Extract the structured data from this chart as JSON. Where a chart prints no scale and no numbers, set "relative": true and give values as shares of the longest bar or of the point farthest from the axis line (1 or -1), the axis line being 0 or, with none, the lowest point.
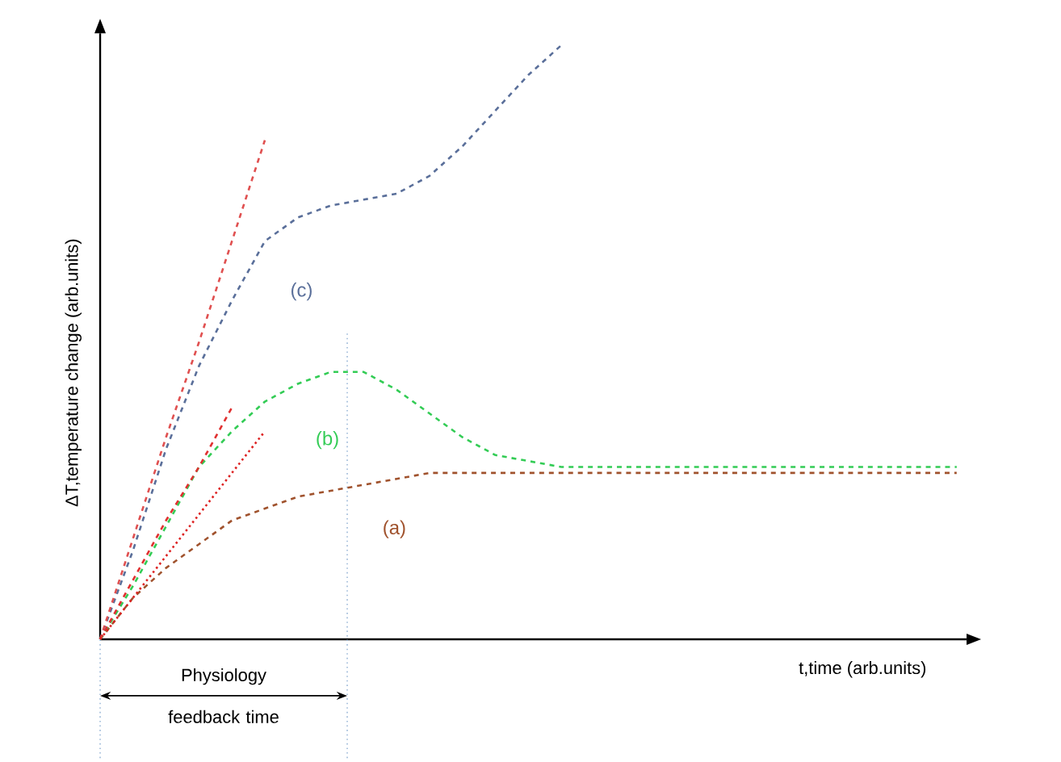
{
  "chart_data": {
    "type": "line",
    "relative": true,
    "xlabel": "t,time (arb.units)",
    "ylabel": "ΔT,temperature change (arb.units)",
    "categories": [
      null,
      null,
      null,
      null,
      null,
      null,
      null,
      null,
      null,
      null,
      null,
      null,
      null,
      null,
      null,
      null,
      null,
      null,
      null,
      null,
      null,
      null,
      null,
      null,
      null,
      null,
      null
    ],
    "marker": "none",
    "legend": false,
    "series": [
      {
        "name": "(a)",
        "color": "#a0522d",
        "line_style": "dashed",
        "values": [
          0,
          0.07,
          0.12,
          0.16,
          0.2,
          0.22,
          0.24,
          0.25,
          0.26,
          0.27,
          0.28,
          0.28,
          0.28,
          0.28,
          0.28,
          0.28,
          0.28,
          0.28,
          0.28,
          0.28,
          0.28,
          0.28,
          0.28,
          0.28,
          0.28,
          0.28,
          0.28
        ]
      },
      {
        "name": "(b)",
        "color": "#33cc55",
        "line_style": "dashed",
        "values": [
          0,
          0.09,
          0.19,
          0.29,
          0.35,
          0.4,
          0.43,
          0.45,
          0.45,
          0.42,
          0.38,
          0.34,
          0.31,
          0.3,
          0.29,
          0.29,
          0.29,
          0.29,
          0.29,
          0.29,
          0.29,
          0.29,
          0.29,
          0.29,
          0.29,
          0.29,
          0.29
        ]
      },
      {
        "name": "(c)",
        "color": "#5a6f9a",
        "line_style": "dashed",
        "values": [
          0,
          0.15,
          0.32,
          0.46,
          0.57,
          0.67,
          0.71,
          0.73,
          0.74,
          0.75,
          0.78,
          0.83,
          0.89,
          0.95,
          1.0,
          null,
          null,
          null,
          null,
          null,
          null,
          null,
          null,
          null,
          null,
          null,
          null
        ]
      },
      {
        "color": "#e05050",
        "line_style": "dashed",
        "values": [
          0,
          0.17,
          0.34,
          0.5,
          0.67,
          0.84,
          null,
          null,
          null,
          null,
          null,
          null,
          null,
          null,
          null,
          null,
          null,
          null,
          null,
          null,
          null,
          null,
          null,
          null,
          null,
          null,
          null
        ]
      },
      {
        "color": "#e03030",
        "line_style": "dashed",
        "values": [
          0,
          0.1,
          0.2,
          0.29,
          0.39,
          null,
          null,
          null,
          null,
          null,
          null,
          null,
          null,
          null,
          null,
          null,
          null,
          null,
          null,
          null,
          null,
          null,
          null,
          null,
          null,
          null,
          null
        ]
      },
      {
        "color": "#dd2222",
        "line_style": "dotted",
        "values": [
          0,
          0.07,
          0.14,
          0.21,
          0.28,
          0.35,
          null,
          null,
          null,
          null,
          null,
          null,
          null,
          null,
          null,
          null,
          null,
          null,
          null,
          null,
          null,
          null,
          null,
          null,
          null,
          null,
          null
        ]
      }
    ],
    "annotations": [
      "Physiology feedback time"
    ]
  }
}
